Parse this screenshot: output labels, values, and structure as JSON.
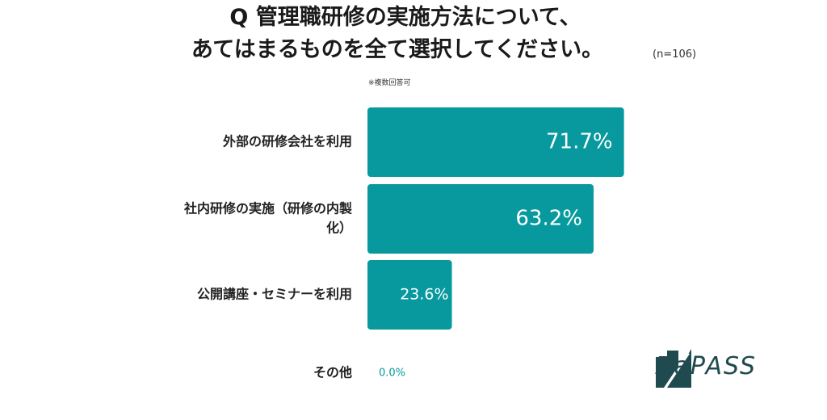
{
  "question": {
    "line1": "Q 管理職研修の実施方法について、",
    "line2": "あてはまるものを全て選択してください。",
    "sample_size": "(n=106)",
    "note": "※複数回答可"
  },
  "brand": {
    "logo_text": "ZaPASS"
  },
  "colors": {
    "bar": "#07999e",
    "bar_label_inside": "#ffffff",
    "bar_label_zero": "#07999e",
    "logo": "#1f4a4f"
  },
  "chart_data": {
    "type": "bar",
    "orientation": "horizontal",
    "categories": [
      [
        "外部の研修会社を利用"
      ],
      [
        "社内研修の実施（研修の内製",
        "化）"
      ],
      [
        "公開講座・セミナーを利用"
      ],
      [
        "その他"
      ]
    ],
    "values": [
      71.7,
      63.2,
      23.6,
      0.0
    ],
    "value_labels": [
      "71.7%",
      "63.2%",
      "23.6%",
      "0.0%"
    ],
    "xlim": [
      0,
      100
    ],
    "grid": false,
    "legend": "none"
  }
}
